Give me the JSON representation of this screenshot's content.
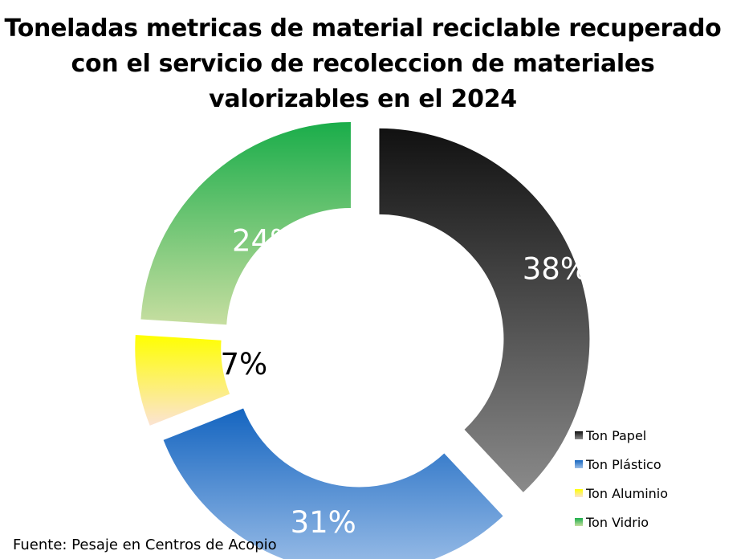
{
  "chart_data": {
    "type": "pie",
    "variant": "donut-exploded",
    "title": "Toneladas metricas de material reciclable recuperado con el servicio de recoleccion de materiales valorizables en el 2024",
    "categories": [
      "Ton Papel",
      "Ton Plástico",
      "Ton Aluminio",
      "Ton Vidrio"
    ],
    "values": [
      38,
      31,
      7,
      24
    ],
    "labels": [
      "38%",
      "31%",
      "7%",
      "24%"
    ],
    "label_color": "#ffffff",
    "aluminio_label_color": "#000000",
    "colors": [
      {
        "name": "Ton Papel",
        "top": "#111111",
        "bottom": "#8a8a8a"
      },
      {
        "name": "Ton Plástico",
        "top": "#1565c0",
        "bottom": "#9dbfe8"
      },
      {
        "name": "Ton Aluminio",
        "top": "#ffff00",
        "bottom": "#fbe3d3"
      },
      {
        "name": "Ton Vidrio",
        "top": "#1aad4a",
        "bottom": "#c6dea0"
      }
    ],
    "legend_position": "right-bottom"
  },
  "legend": {
    "items": [
      "Ton Papel",
      "Ton Plástico",
      "Ton Aluminio",
      "Ton Vidrio"
    ]
  },
  "footer": {
    "source": "Fuente: Pesaje en Centros de Acopio"
  }
}
